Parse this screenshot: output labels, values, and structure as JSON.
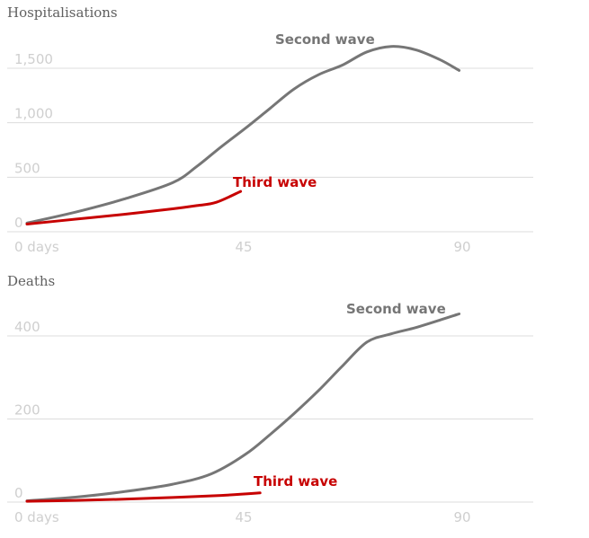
{
  "chart_data": [
    {
      "type": "line",
      "title": "Hospitalisations",
      "x_unit_label": "days",
      "xlim": [
        0,
        99
      ],
      "ylim": [
        0,
        1500
      ],
      "x_ticks": [
        0,
        45,
        90
      ],
      "x_tick_labels": [
        "0 days",
        "45",
        "90"
      ],
      "y_ticks": [
        0,
        500,
        1000,
        1500
      ],
      "y_tick_labels": [
        "0",
        "500",
        "1,000",
        "1,500"
      ],
      "grid": true,
      "series": [
        {
          "name": "Second wave",
          "color": "#767676",
          "x": [
            0,
            10,
            20,
            30,
            35,
            40,
            45,
            50,
            55,
            60,
            65,
            70,
            75,
            80,
            85,
            89
          ],
          "y": [
            80,
            180,
            300,
            450,
            600,
            780,
            950,
            1130,
            1310,
            1440,
            1530,
            1650,
            1700,
            1670,
            1580,
            1480
          ]
        },
        {
          "name": "Third wave",
          "color": "#c70000",
          "x": [
            0,
            10,
            20,
            30,
            35,
            39,
            44
          ],
          "y": [
            70,
            115,
            160,
            210,
            240,
            270,
            370
          ]
        }
      ]
    },
    {
      "type": "line",
      "title": "Deaths",
      "x_unit_label": "days",
      "xlim": [
        0,
        99
      ],
      "ylim": [
        0,
        400
      ],
      "x_ticks": [
        0,
        45,
        90
      ],
      "x_tick_labels": [
        "0 days",
        "45",
        "90"
      ],
      "y_ticks": [
        0,
        200,
        400
      ],
      "y_tick_labels": [
        "0",
        "200",
        "400"
      ],
      "grid": true,
      "series": [
        {
          "name": "Second wave",
          "color": "#767676",
          "x": [
            0,
            10,
            20,
            30,
            38,
            45,
            50,
            55,
            60,
            65,
            70,
            75,
            80,
            85,
            89
          ],
          "y": [
            3,
            12,
            25,
            43,
            68,
            115,
            162,
            213,
            268,
            328,
            385,
            405,
            420,
            438,
            453
          ]
        },
        {
          "name": "Third wave",
          "color": "#c70000",
          "x": [
            0,
            10,
            20,
            30,
            40,
            48
          ],
          "y": [
            2,
            4,
            7,
            11,
            16,
            22
          ]
        }
      ]
    }
  ]
}
